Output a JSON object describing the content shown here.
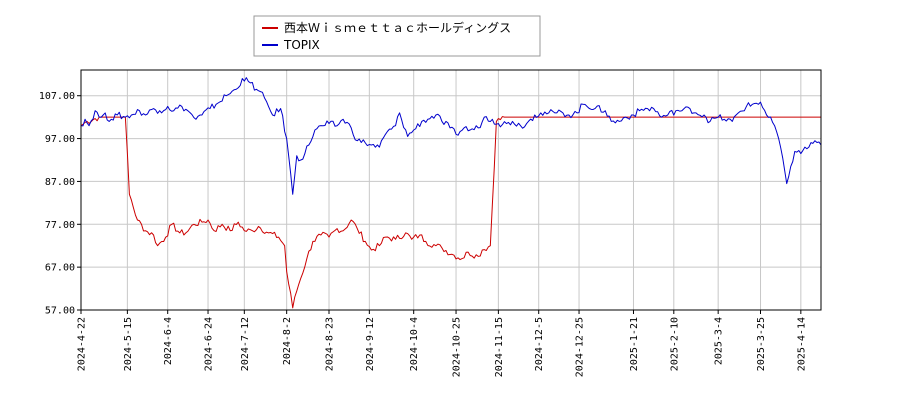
{
  "chart_data": {
    "type": "line",
    "title": "",
    "xlabel": "",
    "ylabel": "",
    "ylim": [
      57,
      113
    ],
    "yticks": [
      "107.00",
      "97.00",
      "87.00",
      "77.00",
      "67.00",
      "57.00"
    ],
    "xlim": [
      "2024-04-22",
      "2025-04-24"
    ],
    "xticks": [
      "2024-4-22",
      "2024-5-15",
      "2024-6-4",
      "2024-6-24",
      "2024-7-12",
      "2024-8-2",
      "2024-8-23",
      "2024-9-12",
      "2024-10-4",
      "2024-10-25",
      "2024-11-15",
      "2024-12-5",
      "2024-12-25",
      "2025-1-21",
      "2025-2-10",
      "2025-3-4",
      "2025-3-25",
      "2025-4-14"
    ],
    "grid": true,
    "legend_position": "top",
    "series": [
      {
        "name": "西本Ｗｉｓｍｅｔｔａｃホールディングス",
        "color": "#cc0000",
        "points": [
          [
            "2024-04-22",
            100.0
          ],
          [
            "2024-04-25",
            101.0
          ],
          [
            "2024-05-01",
            102.0
          ],
          [
            "2024-05-08",
            102.0
          ],
          [
            "2024-05-14",
            102.0
          ],
          [
            "2024-05-16",
            84.0
          ],
          [
            "2024-05-20",
            78.0
          ],
          [
            "2024-05-24",
            75.5
          ],
          [
            "2024-05-28",
            74.5
          ],
          [
            "2024-05-30",
            72.0
          ],
          [
            "2024-06-03",
            74.0
          ],
          [
            "2024-06-06",
            77.0
          ],
          [
            "2024-06-10",
            75.0
          ],
          [
            "2024-06-13",
            75.0
          ],
          [
            "2024-06-17",
            77.0
          ],
          [
            "2024-06-21",
            77.5
          ],
          [
            "2024-06-24",
            78.0
          ],
          [
            "2024-06-27",
            75.5
          ],
          [
            "2024-07-01",
            77.0
          ],
          [
            "2024-07-05",
            75.5
          ],
          [
            "2024-07-09",
            77.5
          ],
          [
            "2024-07-12",
            75.5
          ],
          [
            "2024-07-16",
            75.5
          ],
          [
            "2024-07-19",
            76.5
          ],
          [
            "2024-07-24",
            75.0
          ],
          [
            "2024-07-29",
            74.0
          ],
          [
            "2024-08-01",
            72.0
          ],
          [
            "2024-08-02",
            66.0
          ],
          [
            "2024-08-05",
            57.5
          ],
          [
            "2024-08-06",
            60.0
          ],
          [
            "2024-08-08",
            63.0
          ],
          [
            "2024-08-12",
            69.0
          ],
          [
            "2024-08-15",
            73.0
          ],
          [
            "2024-08-19",
            74.5
          ],
          [
            "2024-08-23",
            74.0
          ],
          [
            "2024-08-27",
            76.0
          ],
          [
            "2024-08-30",
            75.5
          ],
          [
            "2024-09-03",
            78.0
          ],
          [
            "2024-09-06",
            76.0
          ],
          [
            "2024-09-10",
            73.0
          ],
          [
            "2024-09-13",
            71.0
          ],
          [
            "2024-09-17",
            72.0
          ],
          [
            "2024-09-20",
            74.0
          ],
          [
            "2024-09-25",
            73.5
          ],
          [
            "2024-09-30",
            75.0
          ],
          [
            "2024-10-03",
            73.5
          ],
          [
            "2024-10-07",
            74.5
          ],
          [
            "2024-10-10",
            73.0
          ],
          [
            "2024-10-15",
            72.0
          ],
          [
            "2024-10-18",
            71.5
          ],
          [
            "2024-10-23",
            70.0
          ],
          [
            "2024-10-28",
            69.0
          ],
          [
            "2024-10-31",
            70.5
          ],
          [
            "2024-11-05",
            69.5
          ],
          [
            "2024-11-07",
            71.0
          ],
          [
            "2024-11-11",
            72.0
          ],
          [
            "2024-11-14",
            101.0
          ],
          [
            "2024-11-18",
            102.0
          ],
          [
            "2024-12-01",
            102.0
          ],
          [
            "2024-12-20",
            102.0
          ],
          [
            "2025-01-15",
            102.0
          ],
          [
            "2025-02-15",
            102.0
          ],
          [
            "2025-03-15",
            102.0
          ],
          [
            "2025-04-24",
            102.0
          ]
        ]
      },
      {
        "name": "TOPIX",
        "color": "#0000cc",
        "points": [
          [
            "2024-04-22",
            100.0
          ],
          [
            "2024-04-24",
            101.5
          ],
          [
            "2024-04-26",
            100.0
          ],
          [
            "2024-04-29",
            103.5
          ],
          [
            "2024-05-01",
            102.0
          ],
          [
            "2024-05-03",
            102.5
          ],
          [
            "2024-05-07",
            101.5
          ],
          [
            "2024-05-10",
            102.5
          ],
          [
            "2024-05-14",
            102.0
          ],
          [
            "2024-05-17",
            102.5
          ],
          [
            "2024-05-21",
            103.5
          ],
          [
            "2024-05-24",
            102.5
          ],
          [
            "2024-05-28",
            104.0
          ],
          [
            "2024-05-31",
            103.5
          ],
          [
            "2024-06-04",
            104.5
          ],
          [
            "2024-06-07",
            103.5
          ],
          [
            "2024-06-11",
            104.5
          ],
          [
            "2024-06-14",
            103.5
          ],
          [
            "2024-06-18",
            101.5
          ],
          [
            "2024-06-21",
            102.5
          ],
          [
            "2024-06-25",
            104.0
          ],
          [
            "2024-06-28",
            105.0
          ],
          [
            "2024-07-03",
            107.0
          ],
          [
            "2024-07-08",
            108.5
          ],
          [
            "2024-07-11",
            111.0
          ],
          [
            "2024-07-15",
            110.0
          ],
          [
            "2024-07-18",
            108.5
          ],
          [
            "2024-07-22",
            106.5
          ],
          [
            "2024-07-24",
            104.5
          ],
          [
            "2024-07-26",
            102.5
          ],
          [
            "2024-07-30",
            104.0
          ],
          [
            "2024-08-02",
            97.0
          ],
          [
            "2024-08-05",
            84.0
          ],
          [
            "2024-08-07",
            93.0
          ],
          [
            "2024-08-09",
            92.0
          ],
          [
            "2024-08-13",
            95.5
          ],
          [
            "2024-08-16",
            99.0
          ],
          [
            "2024-08-20",
            100.0
          ],
          [
            "2024-08-23",
            100.5
          ],
          [
            "2024-08-27",
            100.0
          ],
          [
            "2024-08-30",
            101.5
          ],
          [
            "2024-09-03",
            99.5
          ],
          [
            "2024-09-06",
            96.5
          ],
          [
            "2024-09-10",
            96.0
          ],
          [
            "2024-09-13",
            95.5
          ],
          [
            "2024-09-17",
            95.0
          ],
          [
            "2024-09-20",
            98.0
          ],
          [
            "2024-09-25",
            100.0
          ],
          [
            "2024-09-27",
            103.0
          ],
          [
            "2024-10-01",
            97.5
          ],
          [
            "2024-10-04",
            99.0
          ],
          [
            "2024-10-08",
            101.0
          ],
          [
            "2024-10-11",
            101.5
          ],
          [
            "2024-10-15",
            102.5
          ],
          [
            "2024-10-18",
            101.0
          ],
          [
            "2024-10-22",
            99.5
          ],
          [
            "2024-10-25",
            98.0
          ],
          [
            "2024-10-29",
            99.5
          ],
          [
            "2024-11-01",
            99.0
          ],
          [
            "2024-11-05",
            99.5
          ],
          [
            "2024-11-08",
            102.0
          ],
          [
            "2024-11-12",
            101.5
          ],
          [
            "2024-11-15",
            100.5
          ],
          [
            "2024-11-19",
            100.5
          ],
          [
            "2024-11-22",
            101.0
          ],
          [
            "2024-11-26",
            100.0
          ],
          [
            "2024-11-29",
            100.5
          ],
          [
            "2024-12-03",
            102.5
          ],
          [
            "2024-12-06",
            103.0
          ],
          [
            "2024-12-10",
            103.0
          ],
          [
            "2024-12-13",
            103.0
          ],
          [
            "2024-12-17",
            103.0
          ],
          [
            "2024-12-20",
            102.5
          ],
          [
            "2024-12-24",
            103.0
          ],
          [
            "2024-12-27",
            105.0
          ],
          [
            "2025-01-07",
            103.5
          ],
          [
            "2025-01-10",
            101.0
          ],
          [
            "2025-01-14",
            101.0
          ],
          [
            "2025-01-17",
            102.0
          ],
          [
            "2025-01-21",
            102.5
          ],
          [
            "2025-01-24",
            103.5
          ],
          [
            "2025-01-28",
            104.0
          ],
          [
            "2025-01-31",
            104.0
          ],
          [
            "2025-02-04",
            102.0
          ],
          [
            "2025-02-07",
            102.5
          ],
          [
            "2025-02-11",
            103.5
          ],
          [
            "2025-02-14",
            103.5
          ],
          [
            "2025-02-18",
            104.0
          ],
          [
            "2025-02-21",
            103.0
          ],
          [
            "2025-02-25",
            102.5
          ],
          [
            "2025-02-28",
            101.0
          ],
          [
            "2025-03-04",
            102.0
          ],
          [
            "2025-03-07",
            101.5
          ],
          [
            "2025-03-11",
            101.0
          ],
          [
            "2025-03-14",
            103.0
          ],
          [
            "2025-03-18",
            104.5
          ],
          [
            "2025-03-21",
            105.0
          ],
          [
            "2025-03-25",
            105.5
          ],
          [
            "2025-03-28",
            102.5
          ],
          [
            "2025-04-01",
            100.0
          ],
          [
            "2025-04-03",
            97.0
          ],
          [
            "2025-04-07",
            86.5
          ],
          [
            "2025-04-09",
            90.5
          ],
          [
            "2025-04-11",
            94.0
          ],
          [
            "2025-04-14",
            93.5
          ],
          [
            "2025-04-16",
            95.0
          ],
          [
            "2025-04-18",
            95.0
          ],
          [
            "2025-04-21",
            96.5
          ],
          [
            "2025-04-24",
            95.5
          ]
        ]
      }
    ]
  }
}
